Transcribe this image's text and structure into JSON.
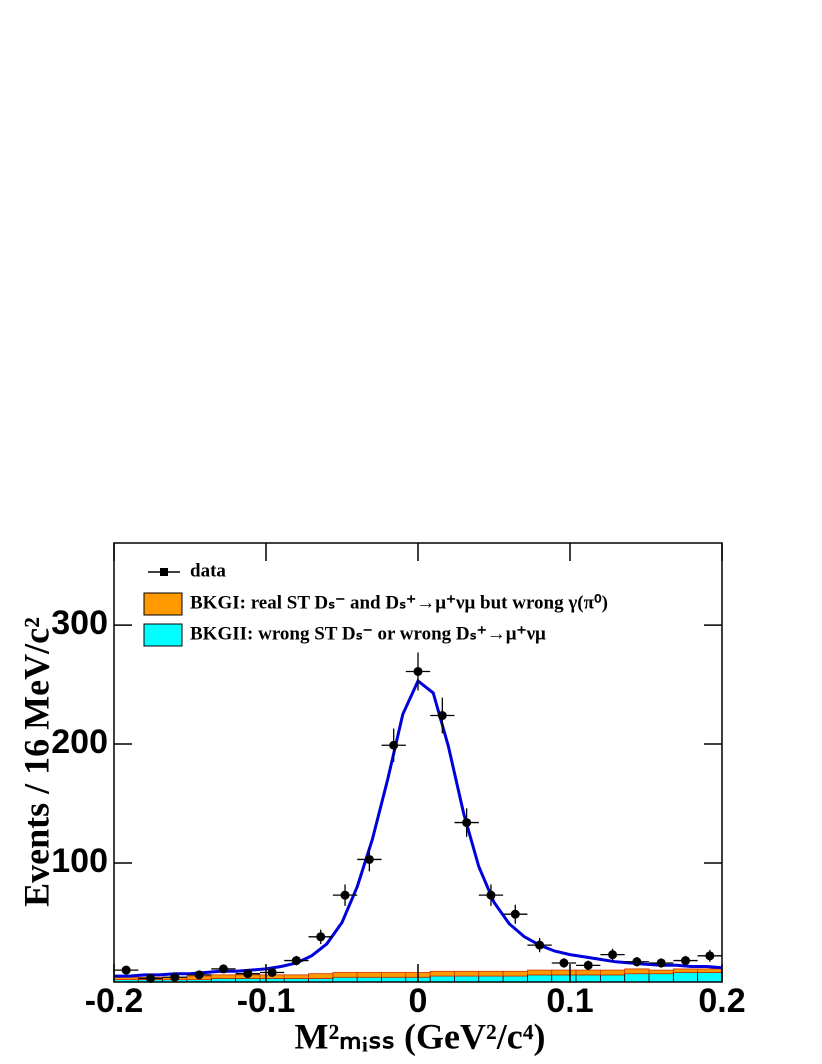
{
  "chart_data": {
    "type": "histogram",
    "xlabel": "M²ₘᵢₛₛ (GeV²/c⁴)",
    "ylabel": "Events / 16 MeV/c²",
    "xlim": [
      -0.2,
      0.2
    ],
    "ylim": [
      0,
      369
    ],
    "xticks": [
      -0.2,
      -0.1,
      0,
      0.1,
      0.2
    ],
    "yticks": [
      100,
      200,
      300
    ],
    "legend": "top-left",
    "bins": [
      -0.2,
      -0.184,
      -0.168,
      -0.152,
      -0.136,
      -0.12,
      -0.104,
      -0.088,
      -0.072,
      -0.056,
      -0.04,
      -0.024,
      -0.008,
      0.008,
      0.024,
      0.04,
      0.056,
      0.072,
      0.088,
      0.104,
      0.12,
      0.136,
      0.152,
      0.168,
      0.184,
      0.2
    ],
    "series": [
      {
        "name": "data",
        "color": "#000000",
        "values": [
          10,
          3,
          4,
          6,
          11,
          7,
          8,
          18,
          38,
          73,
          103,
          199,
          261,
          224,
          134,
          73,
          57,
          31,
          16,
          14,
          23,
          17,
          16,
          18,
          22
        ],
        "errors": [
          3,
          2,
          2,
          2,
          3,
          3,
          3,
          4,
          6,
          9,
          10,
          14,
          16,
          15,
          12,
          9,
          8,
          6,
          4,
          4,
          5,
          4,
          4,
          4,
          5
        ]
      },
      {
        "name": "BKGI: real ST Dₛ⁻ and Dₛ⁺→μ⁺νμ but wrong  γ(π⁰)",
        "color": "#ff9900",
        "stacked": true,
        "values": [
          2,
          2,
          2,
          3,
          3,
          3,
          3,
          3,
          4,
          4,
          4,
          4,
          4,
          4,
          4,
          4,
          4,
          4,
          4,
          4,
          4,
          4,
          3,
          3,
          3
        ]
      },
      {
        "name": "BKGII: wrong ST Dₛ⁻ or wrong Dₛ⁺→μ⁺νμ",
        "color": "#00ffff",
        "values": [
          2,
          2,
          2,
          2,
          3,
          3,
          3,
          3,
          3,
          4,
          4,
          4,
          4,
          5,
          5,
          5,
          5,
          6,
          6,
          6,
          6,
          7,
          7,
          8,
          8
        ]
      }
    ],
    "fit": {
      "color": "#0000dd",
      "x": [
        -0.2,
        -0.19,
        -0.18,
        -0.17,
        -0.16,
        -0.15,
        -0.14,
        -0.13,
        -0.12,
        -0.11,
        -0.1,
        -0.09,
        -0.08,
        -0.07,
        -0.06,
        -0.05,
        -0.04,
        -0.03,
        -0.02,
        -0.01,
        0,
        0.01,
        0.02,
        0.03,
        0.04,
        0.05,
        0.06,
        0.07,
        0.08,
        0.09,
        0.1,
        0.11,
        0.12,
        0.13,
        0.14,
        0.15,
        0.16,
        0.17,
        0.18,
        0.19,
        0.2
      ],
      "values": [
        5,
        5,
        6,
        6,
        7,
        7,
        8,
        9,
        9,
        10,
        11,
        13,
        16,
        22,
        32,
        50,
        80,
        120,
        170,
        225,
        253,
        243,
        198,
        142,
        97,
        67,
        49,
        38,
        31,
        26,
        23,
        21,
        19,
        17,
        16,
        15,
        14,
        14,
        13,
        13,
        12
      ]
    }
  }
}
